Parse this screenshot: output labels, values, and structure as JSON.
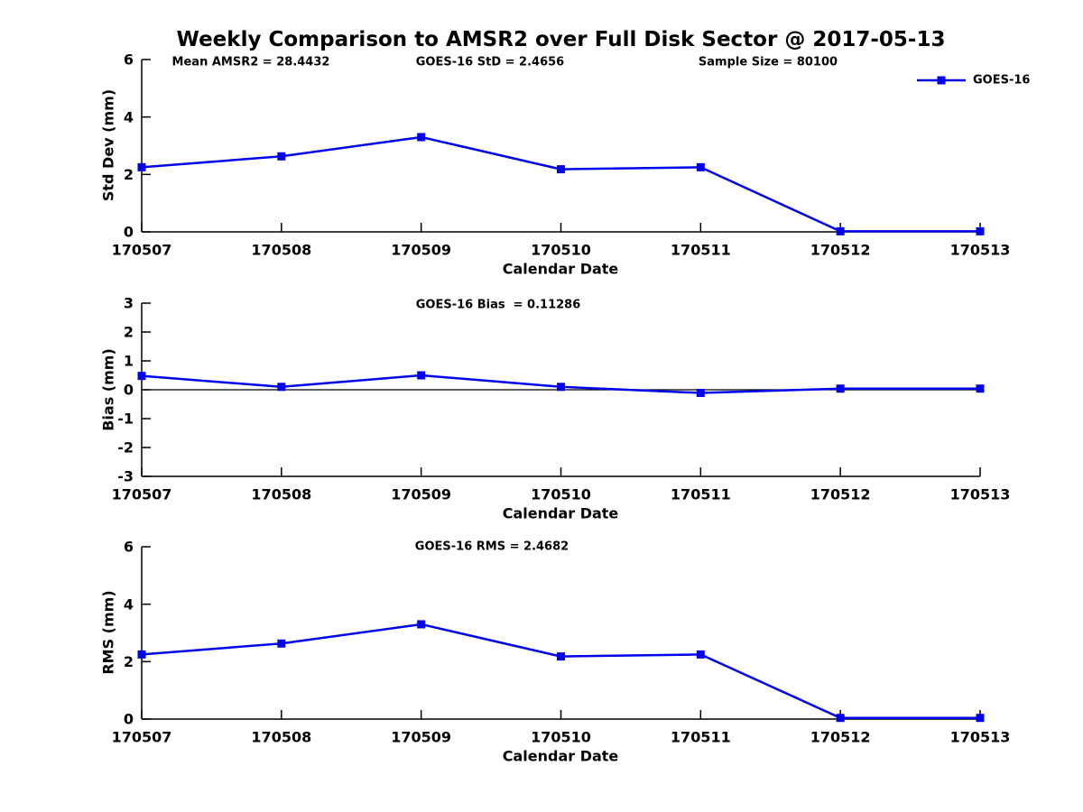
{
  "title": "Weekly Comparison to AMSR2 over Full Disk Sector @ 2017-05-13",
  "colors": {
    "series_line": "#0000EE",
    "axis": "#000000",
    "zero_line": "#000000",
    "text": "#000000",
    "background": "#FFFFFF"
  },
  "legend": {
    "position": "top-right",
    "label": "GOES-16"
  },
  "chart_data": [
    {
      "type": "line",
      "name": "std-dev-subplot",
      "title_annotations": [
        "Mean AMSR2 = 28.4432",
        "GOES-16 StD = 2.4656",
        "Sample Size = 80100"
      ],
      "categories": [
        "170507",
        "170508",
        "170509",
        "170510",
        "170511",
        "170512",
        "170513"
      ],
      "series": [
        {
          "name": "GOES-16",
          "values": [
            2.25,
            2.63,
            3.3,
            2.18,
            2.25,
            0.02,
            0.02
          ]
        }
      ],
      "xlabel": "Calendar Date",
      "ylabel": "Std Dev (mm)",
      "ylim": [
        0,
        6
      ],
      "yticks": [
        0,
        2,
        4,
        6
      ],
      "grid": false,
      "zero_line": false,
      "marker": "square"
    },
    {
      "type": "line",
      "name": "bias-subplot",
      "title_annotations": [
        "GOES-16 Bias  = 0.11286"
      ],
      "categories": [
        "170507",
        "170508",
        "170509",
        "170510",
        "170511",
        "170512",
        "170513"
      ],
      "series": [
        {
          "name": "GOES-16",
          "values": [
            0.48,
            0.1,
            0.5,
            0.1,
            -0.11,
            0.04,
            0.04
          ]
        }
      ],
      "xlabel": "Calendar Date",
      "ylabel": "Bias (mm)",
      "ylim": [
        -3,
        3
      ],
      "yticks": [
        -3,
        -2,
        -1,
        0,
        1,
        2,
        3
      ],
      "grid": false,
      "zero_line": true,
      "marker": "square"
    },
    {
      "type": "line",
      "name": "rms-subplot",
      "title_annotations": [
        "GOES-16 RMS = 2.4682"
      ],
      "categories": [
        "170507",
        "170508",
        "170509",
        "170510",
        "170511",
        "170512",
        "170513"
      ],
      "series": [
        {
          "name": "GOES-16",
          "values": [
            2.25,
            2.63,
            3.3,
            2.18,
            2.25,
            0.04,
            0.04
          ]
        }
      ],
      "xlabel": "Calendar Date",
      "ylabel": "RMS (mm)",
      "ylim": [
        0,
        6
      ],
      "yticks": [
        0,
        2,
        4,
        6
      ],
      "grid": false,
      "zero_line": false,
      "marker": "square"
    }
  ]
}
